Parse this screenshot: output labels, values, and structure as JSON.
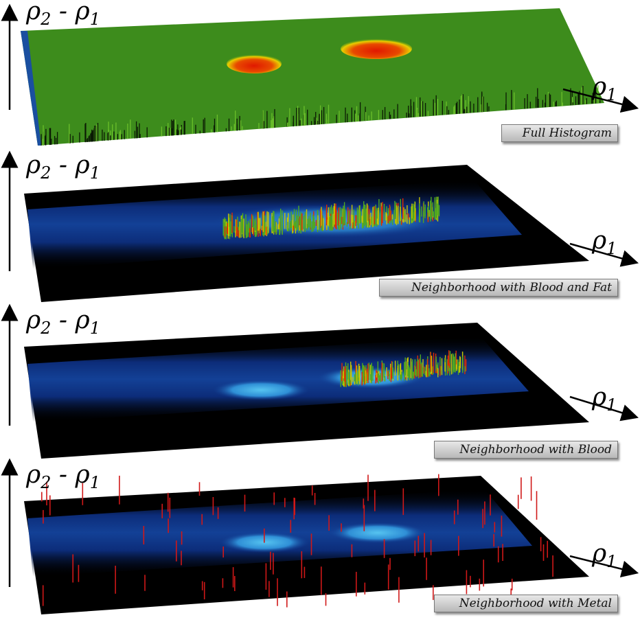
{
  "panels": [
    {
      "label": "Full Histogram",
      "y_axis": {
        "main": "ρ",
        "sub1": "2",
        "minus": " - ",
        "main2": "ρ",
        "sub2": "1"
      },
      "x_axis": {
        "main": "ρ",
        "sub": "1"
      }
    },
    {
      "label": "Neighborhood with Blood and Fat",
      "y_axis": {
        "main": "ρ",
        "sub1": "2",
        "minus": " - ",
        "main2": "ρ",
        "sub2": "1"
      },
      "x_axis": {
        "main": "ρ",
        "sub": "1"
      }
    },
    {
      "label": "Neighborhood with Blood",
      "y_axis": {
        "main": "ρ",
        "sub1": "2",
        "minus": " - ",
        "main2": "ρ",
        "sub2": "1"
      },
      "x_axis": {
        "main": "ρ",
        "sub": "1"
      }
    },
    {
      "label": "Neighborhood with Metal",
      "y_axis": {
        "main": "ρ",
        "sub1": "2",
        "minus": " - ",
        "main2": "ρ",
        "sub2": "1"
      },
      "x_axis": {
        "main": "ρ",
        "sub": "1"
      }
    }
  ],
  "colors": {
    "histogram_green": "#3a8a1a",
    "peak_red": "#d81a00",
    "peak_yellow": "#e6d200",
    "background_black": "#000000",
    "band_blue": "#0f3a8c",
    "band_cyan": "#35a6e6",
    "spike_red": "#cc1010"
  }
}
